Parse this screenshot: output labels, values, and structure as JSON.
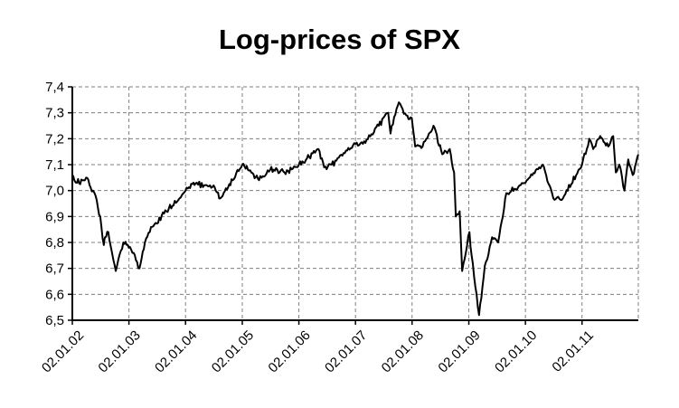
{
  "chart_data": {
    "type": "line",
    "title": "Log-prices of SPX",
    "xlabel": "",
    "ylabel": "",
    "ylim": [
      6.5,
      7.4
    ],
    "xlim": [
      "02.01.02",
      "31.12.11"
    ],
    "grid": true,
    "legend": "none",
    "line_color": "#000000",
    "yticks": [
      "6,5",
      "6,6",
      "6,7",
      "6,8",
      "6,9",
      "7,0",
      "7,1",
      "7,2",
      "7,3",
      "7,4"
    ],
    "xticks": [
      "02.01.02",
      "02.01.03",
      "02.01.04",
      "02.01.05",
      "02.01.06",
      "02.01.07",
      "02.01.08",
      "02.01.09",
      "02.01.10",
      "02.01.11"
    ],
    "series": [
      {
        "x": [
          "02.01.02",
          "15.01.02",
          "01.02.02",
          "15.03.02",
          "01.04.02",
          "15.05.02",
          "01.06.02",
          "01.07.02",
          "24.07.02",
          "01.08.02",
          "22.08.02",
          "15.09.02",
          "09.10.02",
          "27.11.02",
          "01.01.03",
          "01.02.03",
          "11.03.03",
          "15.04.03",
          "01.06.03",
          "01.09.03",
          "02.01.04",
          "15.03.04",
          "01.05.04",
          "01.07.04",
          "13.08.04",
          "01.11.04",
          "02.01.05",
          "01.03.05",
          "20.04.05",
          "01.07.05",
          "01.10.05",
          "02.01.06",
          "08.05.06",
          "14.06.06",
          "01.08.06",
          "02.01.07",
          "27.02.07",
          "01.06.07",
          "01.08.07",
          "16.08.07",
          "09.10.07",
          "26.11.07",
          "31.12.07",
          "22.01.08",
          "10.03.08",
          "19.05.08",
          "15.07.08",
          "01.09.08",
          "29.09.08",
          "10.10.08",
          "04.11.08",
          "20.11.08",
          "06.01.09",
          "20.01.09",
          "09.03.09",
          "15.04.09",
          "01.06.09",
          "10.07.09",
          "01.09.09",
          "02.01.10",
          "23.04.10",
          "01.07.10",
          "01.09.10",
          "02.01.11",
          "18.02.11",
          "15.03.11",
          "29.04.11",
          "20.06.11",
          "22.07.11",
          "08.08.11",
          "31.08.11",
          "03.10.11",
          "27.10.11",
          "25.11.11",
          "31.12.11"
        ],
        "y": [
          7.06,
          7.04,
          7.03,
          7.04,
          7.05,
          7.0,
          6.98,
          6.9,
          6.79,
          6.82,
          6.84,
          6.76,
          6.69,
          6.8,
          6.78,
          6.76,
          6.7,
          6.8,
          6.86,
          6.92,
          7.0,
          7.03,
          7.02,
          7.02,
          6.97,
          7.04,
          7.1,
          7.07,
          7.04,
          7.08,
          7.07,
          7.1,
          7.16,
          7.09,
          7.1,
          7.18,
          7.19,
          7.25,
          7.3,
          7.22,
          7.34,
          7.29,
          7.28,
          7.17,
          7.17,
          7.25,
          7.14,
          7.16,
          7.07,
          6.9,
          6.92,
          6.69,
          6.84,
          6.75,
          6.52,
          6.71,
          6.82,
          6.8,
          6.99,
          7.03,
          7.1,
          6.97,
          6.97,
          7.1,
          7.2,
          7.16,
          7.21,
          7.17,
          7.21,
          7.07,
          7.1,
          7.0,
          7.12,
          7.06,
          7.14
        ]
      }
    ]
  }
}
